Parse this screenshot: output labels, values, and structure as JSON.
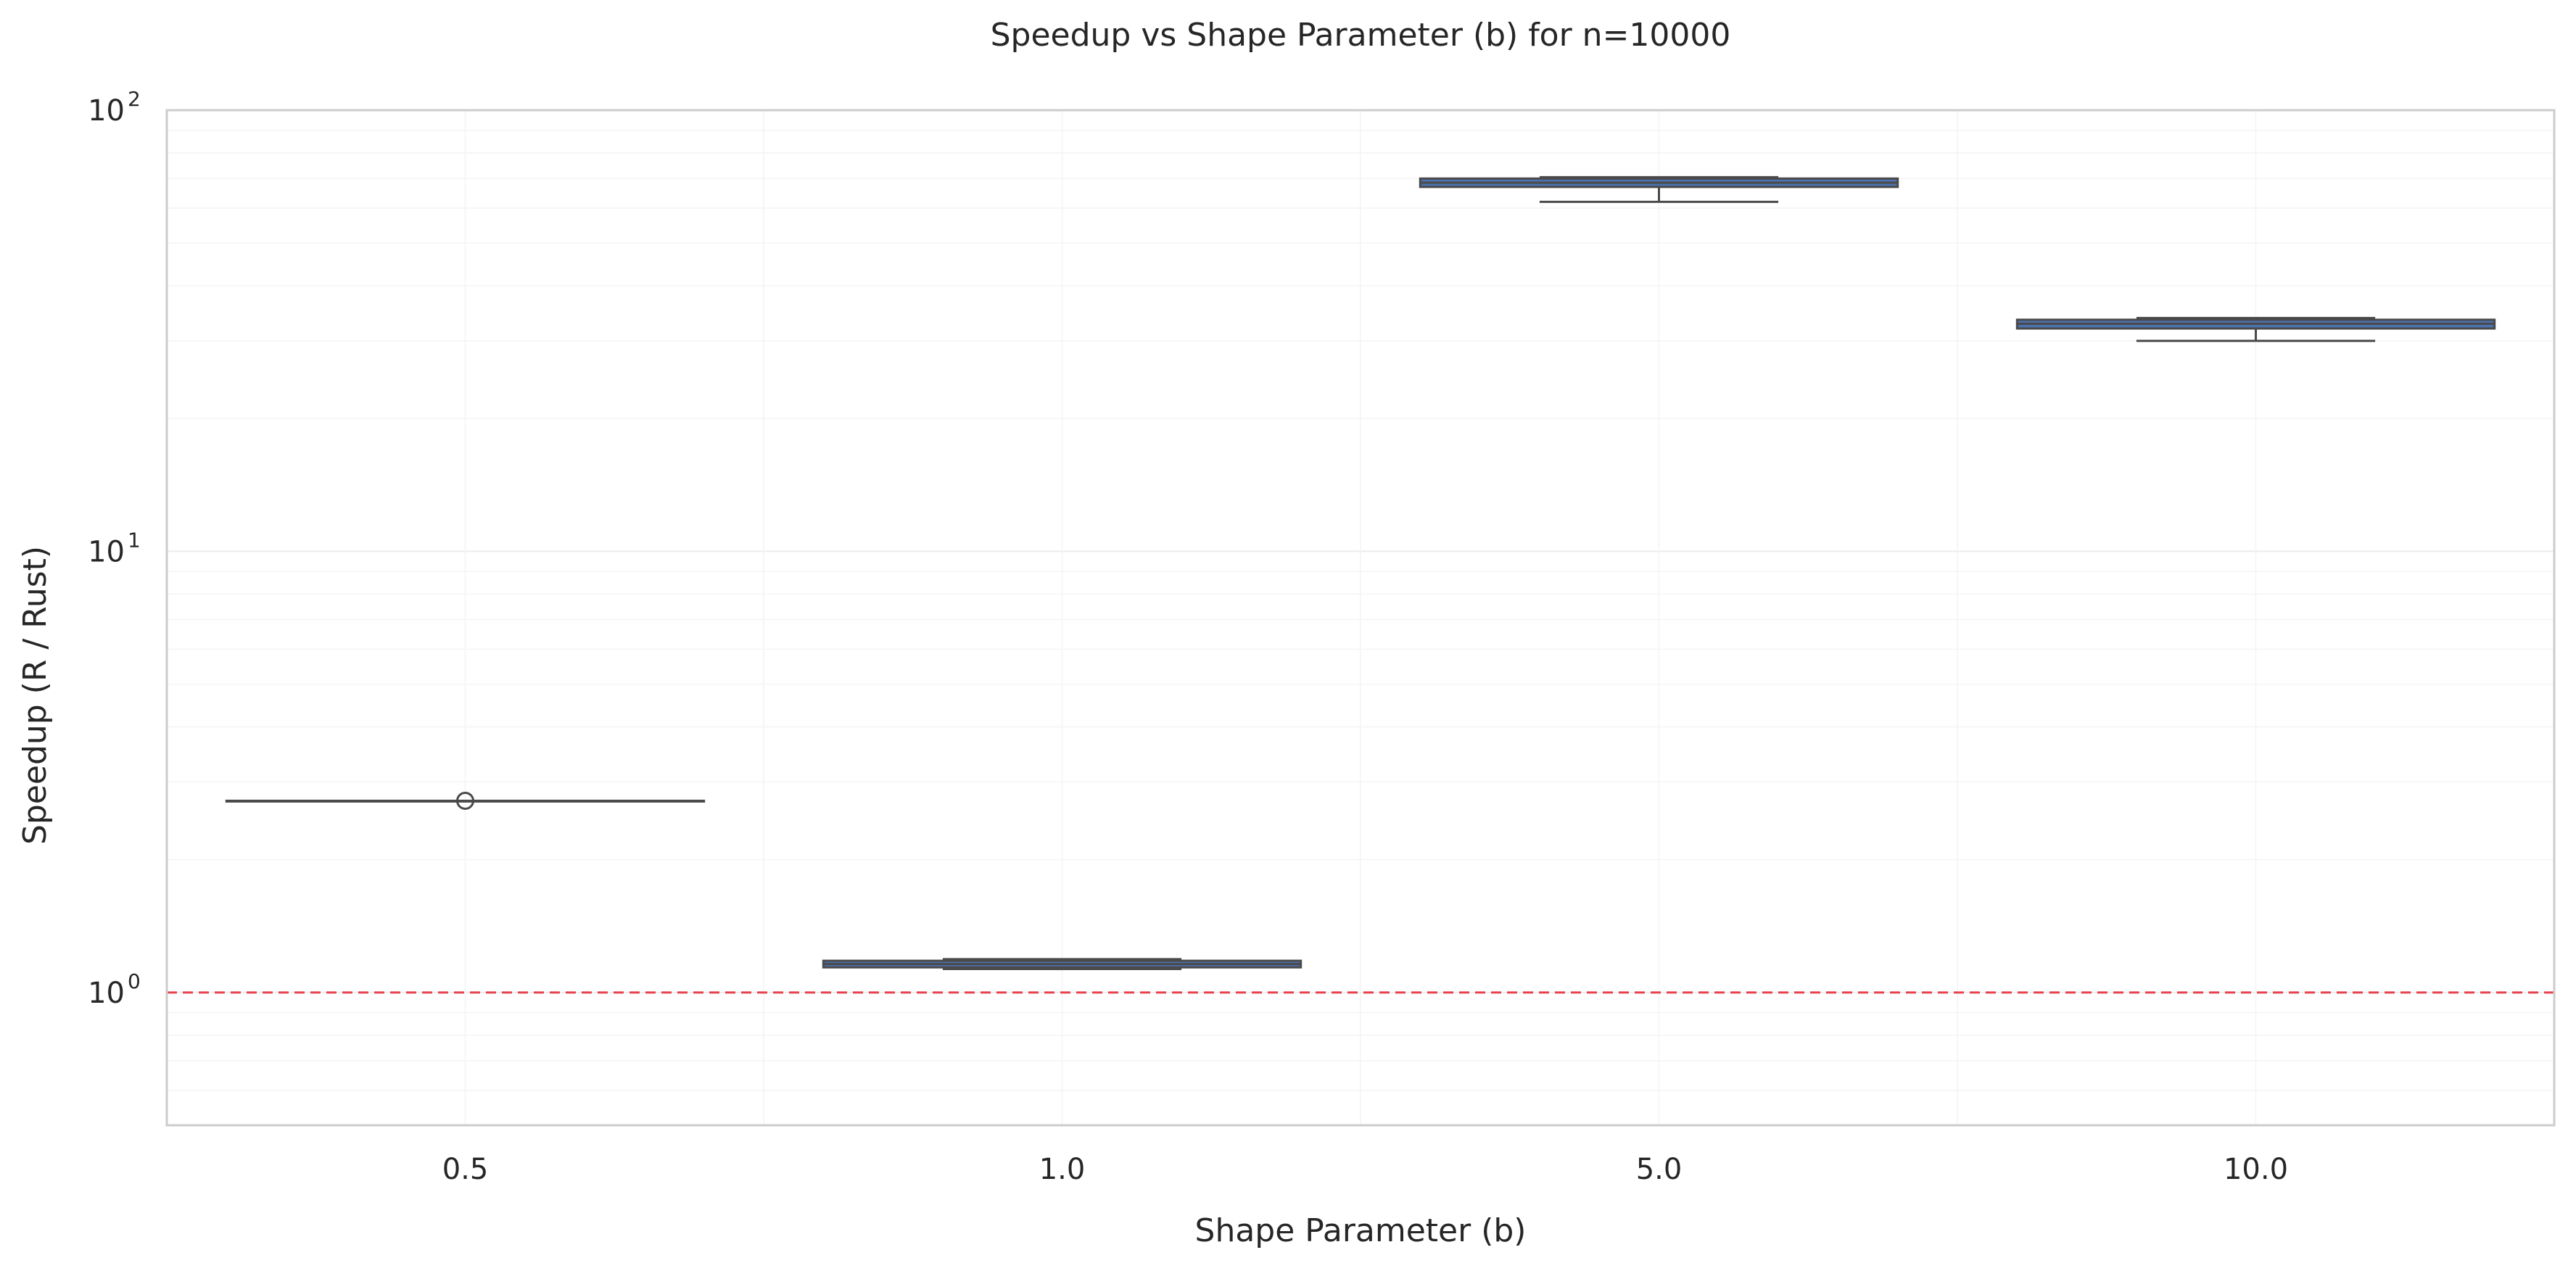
{
  "chart_data": {
    "type": "box",
    "title": "Speedup vs Shape Parameter (b) for n=10000",
    "xlabel": "Shape Parameter (b)",
    "ylabel": "Speedup (R / Rust)",
    "yscale": "log",
    "ylim": [
      0.5,
      100
    ],
    "y_ticks": [
      {
        "base": "10",
        "exp": "0",
        "value": 1
      },
      {
        "base": "10",
        "exp": "1",
        "value": 10
      },
      {
        "base": "10",
        "exp": "2",
        "value": 100
      }
    ],
    "categories": [
      "0.5",
      "1.0",
      "5.0",
      "10.0"
    ],
    "boxes": [
      {
        "category": "0.5",
        "whislo": 2.72,
        "q1": 2.72,
        "med": 2.72,
        "q3": 2.72,
        "whishi": 2.72,
        "fliers": [
          2.72
        ]
      },
      {
        "category": "1.0",
        "whislo": 1.13,
        "q1": 1.14,
        "med": 1.16,
        "q3": 1.18,
        "whishi": 1.19,
        "fliers": []
      },
      {
        "category": "5.0",
        "whislo": 62.0,
        "q1": 67.0,
        "med": 68.5,
        "q3": 70.0,
        "whishi": 70.5,
        "fliers": []
      },
      {
        "category": "10.0",
        "whislo": 30.0,
        "q1": 32.0,
        "med": 32.8,
        "q3": 33.5,
        "whishi": 33.8,
        "fliers": []
      }
    ],
    "reference_line": {
      "y": 1,
      "style": "dashed",
      "color": "#e8424f"
    },
    "box_color": "#4c72b0",
    "line_color": "#4a4a4a",
    "grid": true
  }
}
